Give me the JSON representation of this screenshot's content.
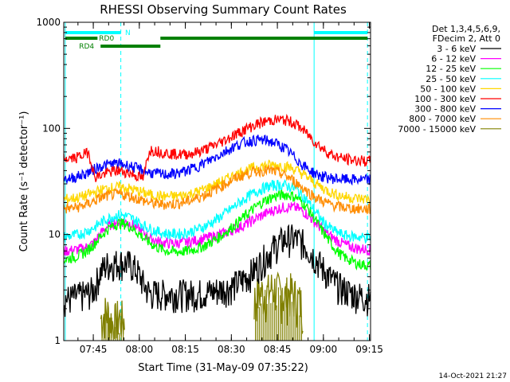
{
  "chart_data": {
    "type": "line",
    "title": "RHESSI Observing Summary Count Rates",
    "xlabel": "Start Time (31-May-09 07:35:22)",
    "ylabel": "Count Rate (s⁻¹ detector⁻¹)",
    "yscale": "log",
    "ylim": [
      1,
      1000
    ],
    "xlim_minutes": [
      0,
      100
    ],
    "x_ticks": [
      "07:45",
      "08:00",
      "08:15",
      "08:30",
      "08:45",
      "09:00",
      "09:15"
    ],
    "y_ticks": [
      "1",
      "10",
      "100",
      "1000"
    ],
    "legend_header": [
      "Det 1,3,4,5,6,9,",
      "FDecim 2, Att 0"
    ],
    "legend_position": "right",
    "grid": false,
    "x_minutes": [
      0,
      2,
      4,
      6,
      8,
      10,
      12,
      14,
      16,
      18,
      20,
      22,
      24,
      26,
      28,
      30,
      32,
      34,
      36,
      38,
      40,
      42,
      44,
      46,
      48,
      50,
      52,
      54,
      56,
      58,
      60,
      62,
      64,
      66,
      68,
      70,
      72,
      74,
      76,
      78,
      80,
      82,
      84,
      86,
      88,
      90,
      92,
      94,
      96,
      98,
      100
    ],
    "series": [
      {
        "name": "3 - 6 keV",
        "color": "#000000",
        "values": [
          2.5,
          2.5,
          2.6,
          2.7,
          2.8,
          3.1,
          4.5,
          5.2,
          5.4,
          5.5,
          5.4,
          5.2,
          4.5,
          3.4,
          2.8,
          2.8,
          2.8,
          2.8,
          2.8,
          2.8,
          2.8,
          2.8,
          2.8,
          2.9,
          2.9,
          3.0,
          3.1,
          3.2,
          3.4,
          3.7,
          4.1,
          4.6,
          5.4,
          6.3,
          7.3,
          8.3,
          9.0,
          9.3,
          9.1,
          8.3,
          7.2,
          6.0,
          5.0,
          4.2,
          3.6,
          3.2,
          3.0,
          2.8,
          2.7,
          2.6,
          2.6
        ]
      },
      {
        "name": "6 - 12 keV",
        "color": "#ff00ff",
        "values": [
          7.0,
          7.1,
          7.2,
          7.4,
          7.7,
          8.5,
          10.2,
          11.8,
          12.8,
          13.4,
          13.2,
          12.6,
          11.5,
          10.3,
          9.4,
          8.8,
          8.4,
          8.3,
          8.3,
          8.4,
          8.5,
          8.7,
          8.9,
          9.2,
          9.5,
          9.9,
          10.3,
          10.8,
          11.4,
          12.0,
          12.8,
          13.8,
          14.8,
          15.9,
          16.8,
          17.6,
          18.1,
          18.2,
          17.8,
          16.6,
          14.9,
          13.0,
          11.4,
          10.1,
          9.2,
          8.5,
          8.0,
          7.6,
          7.4,
          7.3,
          7.2
        ]
      },
      {
        "name": "12 - 25 keV",
        "color": "#00ff00",
        "values": [
          5.8,
          6.0,
          6.2,
          6.6,
          7.2,
          8.2,
          9.6,
          11.0,
          12.2,
          12.8,
          12.6,
          11.7,
          10.5,
          9.3,
          8.4,
          7.7,
          7.3,
          7.0,
          6.9,
          6.9,
          7.0,
          7.2,
          7.5,
          7.9,
          8.5,
          9.2,
          10.1,
          11.2,
          12.5,
          14.0,
          15.8,
          17.6,
          19.5,
          21.2,
          22.6,
          23.5,
          23.8,
          23.5,
          22.2,
          19.9,
          16.9,
          13.8,
          11.1,
          9.1,
          7.6,
          6.6,
          6.0,
          5.6,
          5.3,
          5.2,
          5.1
        ]
      },
      {
        "name": "25 - 50 keV",
        "color": "#00ffff",
        "values": [
          9.5,
          9.7,
          9.9,
          10.3,
          10.9,
          11.7,
          12.9,
          14.0,
          14.8,
          15.3,
          15.1,
          14.3,
          13.3,
          12.3,
          11.4,
          10.8,
          10.4,
          10.2,
          10.1,
          10.2,
          10.4,
          10.8,
          11.3,
          12.0,
          12.9,
          14.0,
          15.4,
          17.0,
          18.8,
          20.7,
          22.7,
          24.6,
          26.5,
          28.0,
          29.0,
          29.4,
          29.2,
          28.3,
          26.3,
          23.2,
          19.7,
          16.4,
          13.8,
          12.0,
          10.9,
          10.2,
          9.8,
          9.6,
          9.5,
          9.4,
          9.4
        ]
      },
      {
        "name": "50 - 100 keV",
        "color": "#ffd700",
        "values": [
          21.5,
          21.8,
          22.2,
          22.8,
          23.8,
          25.0,
          26.2,
          27.2,
          27.8,
          28.0,
          27.7,
          26.9,
          25.9,
          24.8,
          23.9,
          23.3,
          23.0,
          22.9,
          23.0,
          23.3,
          23.8,
          24.6,
          25.6,
          26.9,
          28.4,
          30.2,
          32.2,
          34.4,
          36.6,
          38.8,
          40.8,
          42.6,
          44.0,
          44.9,
          45.2,
          45.0,
          44.3,
          42.7,
          40.2,
          37.0,
          33.6,
          30.5,
          27.9,
          25.9,
          24.4,
          23.4,
          22.7,
          22.2,
          21.9,
          21.7,
          21.6
        ]
      },
      {
        "name": "100 - 300 keV",
        "color": "#ff0000",
        "values": [
          52,
          52,
          53,
          56,
          60,
          35,
          36,
          38,
          39.5,
          40,
          39,
          37.5,
          35.5,
          33.5,
          63,
          62,
          60,
          58.5,
          57.5,
          57,
          57.5,
          58.5,
          60.5,
          63.5,
          67,
          71.5,
          76.5,
          82,
          88,
          94.5,
          101,
          107,
          112.5,
          117,
          120,
          121,
          120,
          116,
          108,
          97,
          85,
          74,
          66,
          59.5,
          55.5,
          53,
          51.5,
          50.5,
          50,
          49.5,
          49.5
        ]
      },
      {
        "name": "300 - 800 keV",
        "color": "#0000ff",
        "values": [
          33.5,
          34,
          35,
          36.5,
          38.5,
          41.5,
          44,
          45.5,
          46.5,
          46.5,
          45.5,
          44,
          42,
          40,
          38.5,
          37.5,
          37,
          37,
          37.5,
          38.5,
          40,
          42,
          44.5,
          47.5,
          51,
          55,
          59.5,
          64,
          68.5,
          72.5,
          75.5,
          77.5,
          78,
          77,
          74.5,
          70.5,
          65,
          58,
          51,
          45,
          40.5,
          37.5,
          35.5,
          34.5,
          33.8,
          33.4,
          33.1,
          33,
          33,
          32.9,
          32.9
        ]
      },
      {
        "name": "800 - 7000 keV",
        "color": "#ff8c00",
        "values": [
          17.5,
          17.7,
          18,
          18.6,
          19.5,
          20.8,
          22.2,
          23.2,
          23.8,
          24,
          23.6,
          22.8,
          21.8,
          20.8,
          20,
          19.5,
          19.3,
          19.3,
          19.5,
          19.9,
          20.5,
          21.3,
          22.4,
          23.8,
          25.4,
          27.3,
          29.4,
          31.6,
          33.9,
          36,
          37.8,
          39.2,
          40,
          40.2,
          39.7,
          38.4,
          36.3,
          33.6,
          30.5,
          27.5,
          24.8,
          22.6,
          20.9,
          19.7,
          18.9,
          18.3,
          17.9,
          17.7,
          17.5,
          17.4,
          17.4
        ]
      },
      {
        "name": "7000 - 15000 keV",
        "color": "#808000",
        "values": [
          null,
          null,
          null,
          null,
          null,
          null,
          1.6,
          1.9,
          1.4,
          1.7,
          1.5,
          null,
          null,
          null,
          null,
          null,
          null,
          null,
          null,
          null,
          null,
          null,
          null,
          null,
          null,
          null,
          null,
          null,
          null,
          null,
          null,
          2.4,
          2.9,
          2.7,
          3.2,
          2.9,
          2.6,
          2.9,
          2.5,
          2.1,
          null,
          null,
          null,
          null,
          null,
          null,
          null,
          null,
          null,
          null,
          null
        ]
      }
    ],
    "annotations": [
      {
        "text": "N",
        "color": "#00ffff"
      },
      {
        "text": "RD0",
        "color": "#008000"
      },
      {
        "text": "RD4",
        "color": "#008000"
      }
    ],
    "timestamp": "14-Oct-2021 21:27"
  }
}
